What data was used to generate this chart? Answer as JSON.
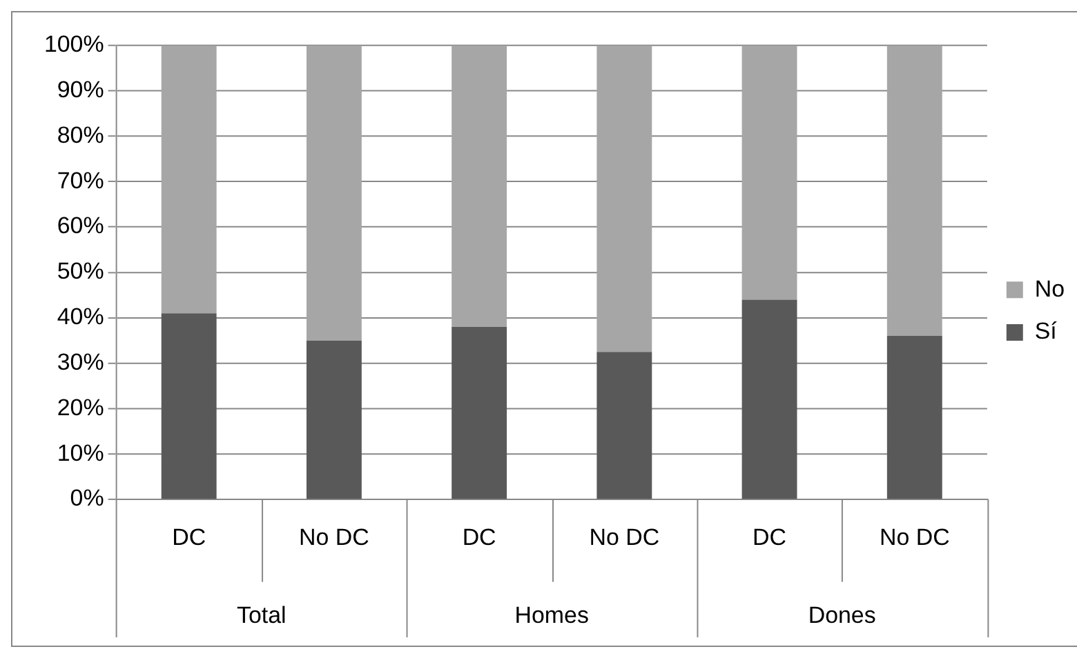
{
  "chart_data": {
    "type": "bar",
    "stacked": true,
    "categories": [
      "DC",
      "No DC",
      "DC",
      "No DC",
      "DC",
      "No DC"
    ],
    "annotations": [
      "Total",
      "Homes",
      "Dones"
    ],
    "series": [
      {
        "name": "Sí",
        "color": "#595959",
        "values": [
          41,
          35,
          38,
          32.5,
          44,
          36
        ]
      },
      {
        "name": "No",
        "color": "#a6a6a6",
        "values": [
          59,
          65,
          62,
          67.5,
          56,
          64
        ]
      }
    ],
    "ylim": [
      0,
      100
    ],
    "yticks": [
      {
        "value": 0,
        "label": "0%"
      },
      {
        "value": 10,
        "label": "10%"
      },
      {
        "value": 20,
        "label": "20%"
      },
      {
        "value": 30,
        "label": "30%"
      },
      {
        "value": 40,
        "label": "40%"
      },
      {
        "value": 50,
        "label": "50%"
      },
      {
        "value": 60,
        "label": "60%"
      },
      {
        "value": 70,
        "label": "70%"
      },
      {
        "value": 80,
        "label": "80%"
      },
      {
        "value": 90,
        "label": "90%"
      },
      {
        "value": 100,
        "label": "100%"
      }
    ],
    "grid": "y",
    "legend": "right"
  }
}
